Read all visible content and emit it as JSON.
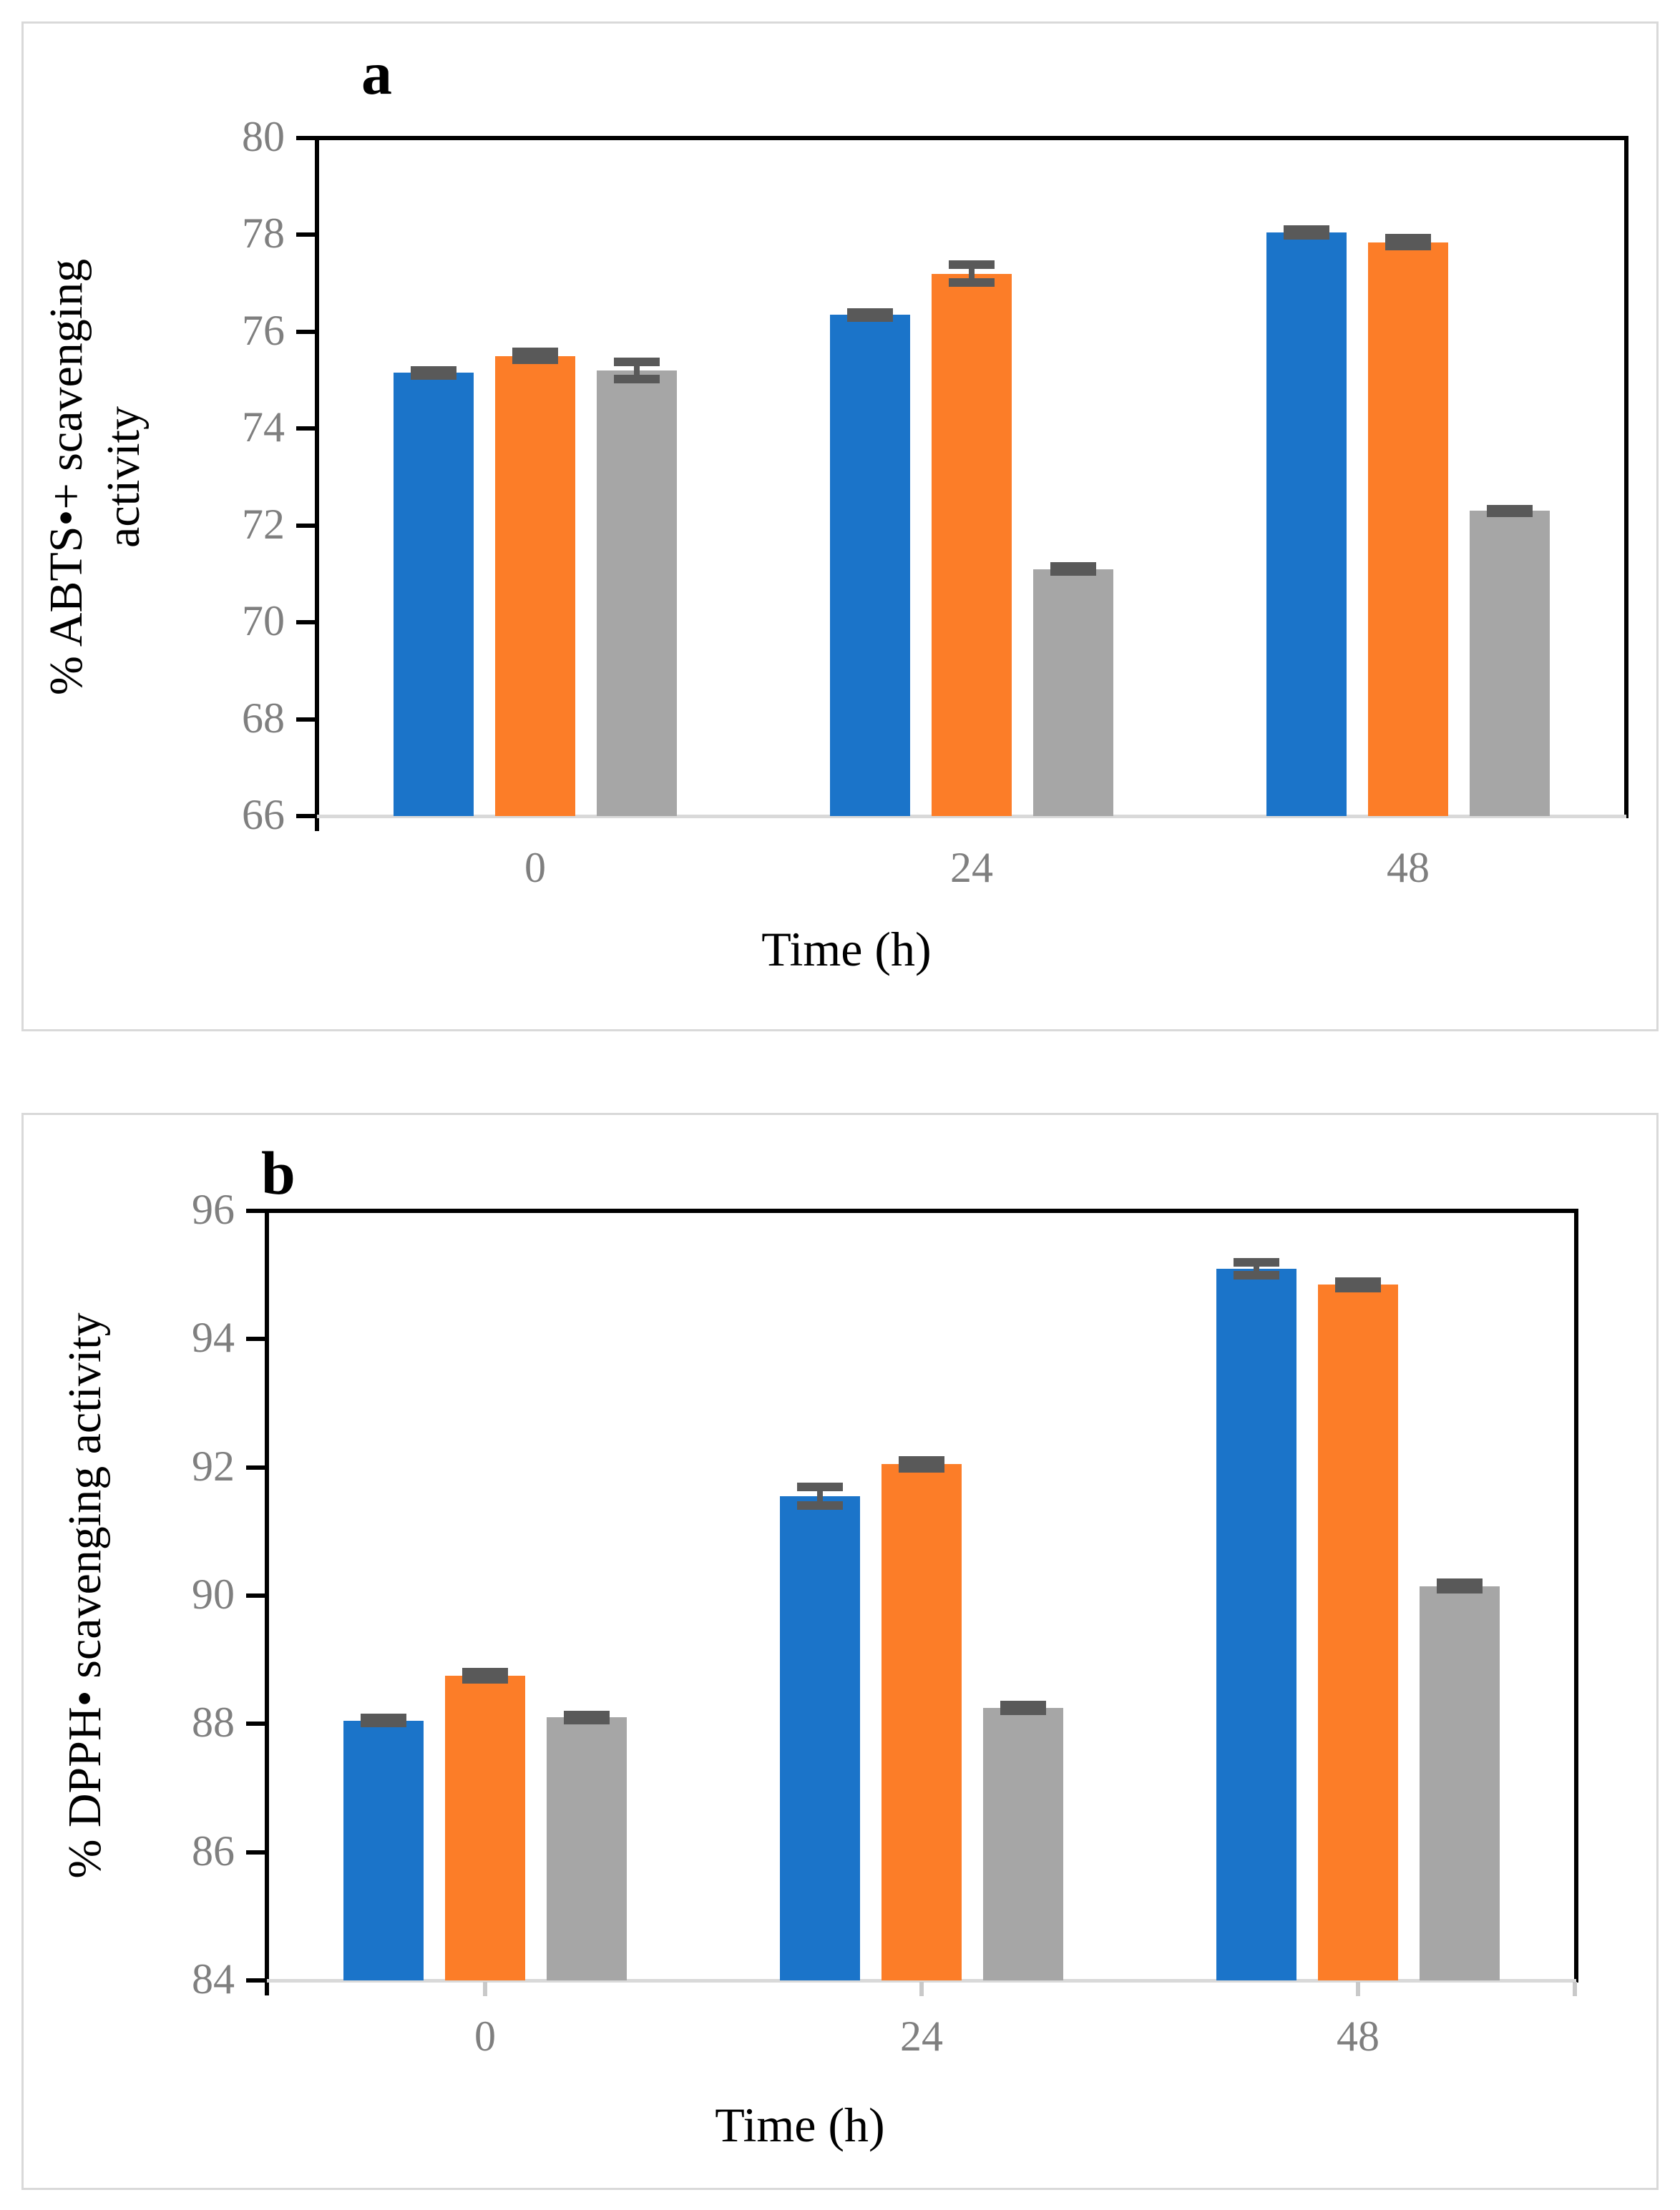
{
  "styles": {
    "tick_label_color": "#7F7F7F",
    "axis_color": "#000000",
    "baseline_color": "#D9D9D9",
    "panel_border_color": "#D9D9D9",
    "error_bar_color": "#595959"
  },
  "chart_data": [
    {
      "type": "bar",
      "panel_label": "a",
      "title": "",
      "ylabel": "% ABTS•+ scavenging activity",
      "ylabel_lines": [
        "% ABTS•+ scavenging",
        "activity"
      ],
      "xlabel": "Time (h)",
      "categories": [
        "0",
        "24",
        "48"
      ],
      "ylim": [
        66,
        80
      ],
      "ytick_step": 2,
      "ytick_labels": [
        "66",
        "68",
        "70",
        "72",
        "74",
        "76",
        "78",
        "80"
      ],
      "grid": false,
      "legend": "none",
      "series": [
        {
          "name": "blue",
          "color": "#1B74C9",
          "values": [
            75.15,
            76.35,
            78.05
          ],
          "errors": [
            0.05,
            0.05,
            0.06
          ]
        },
        {
          "name": "orange",
          "color": "#FC7D28",
          "values": [
            75.5,
            77.2,
            77.85
          ],
          "errors": [
            0.08,
            0.18,
            0.08
          ]
        },
        {
          "name": "gray",
          "color": "#A6A6A6",
          "values": [
            75.2,
            71.1,
            72.3
          ],
          "errors": [
            0.18,
            0.05,
            0.04
          ]
        }
      ]
    },
    {
      "type": "bar",
      "panel_label": "b",
      "title": "",
      "ylabel": "% DPPH• scavenging activity",
      "ylabel_lines": [
        "% DPPH• scavenging activity"
      ],
      "xlabel": "Time (h)",
      "categories": [
        "0",
        "24",
        "48"
      ],
      "ylim": [
        84,
        96
      ],
      "ytick_step": 2,
      "ytick_labels": [
        "84",
        "86",
        "88",
        "90",
        "92",
        "94",
        "96"
      ],
      "grid": false,
      "legend": "none",
      "series": [
        {
          "name": "blue",
          "color": "#1B74C9",
          "values": [
            88.05,
            91.55,
            95.1
          ],
          "errors": [
            0.04,
            0.15,
            0.1
          ]
        },
        {
          "name": "orange",
          "color": "#FC7D28",
          "values": [
            88.75,
            92.05,
            94.85
          ],
          "errors": [
            0.06,
            0.06,
            0.05
          ]
        },
        {
          "name": "gray",
          "color": "#A6A6A6",
          "values": [
            88.1,
            88.25,
            90.15
          ],
          "errors": [
            0.04,
            0.04,
            0.05
          ]
        }
      ]
    }
  ]
}
